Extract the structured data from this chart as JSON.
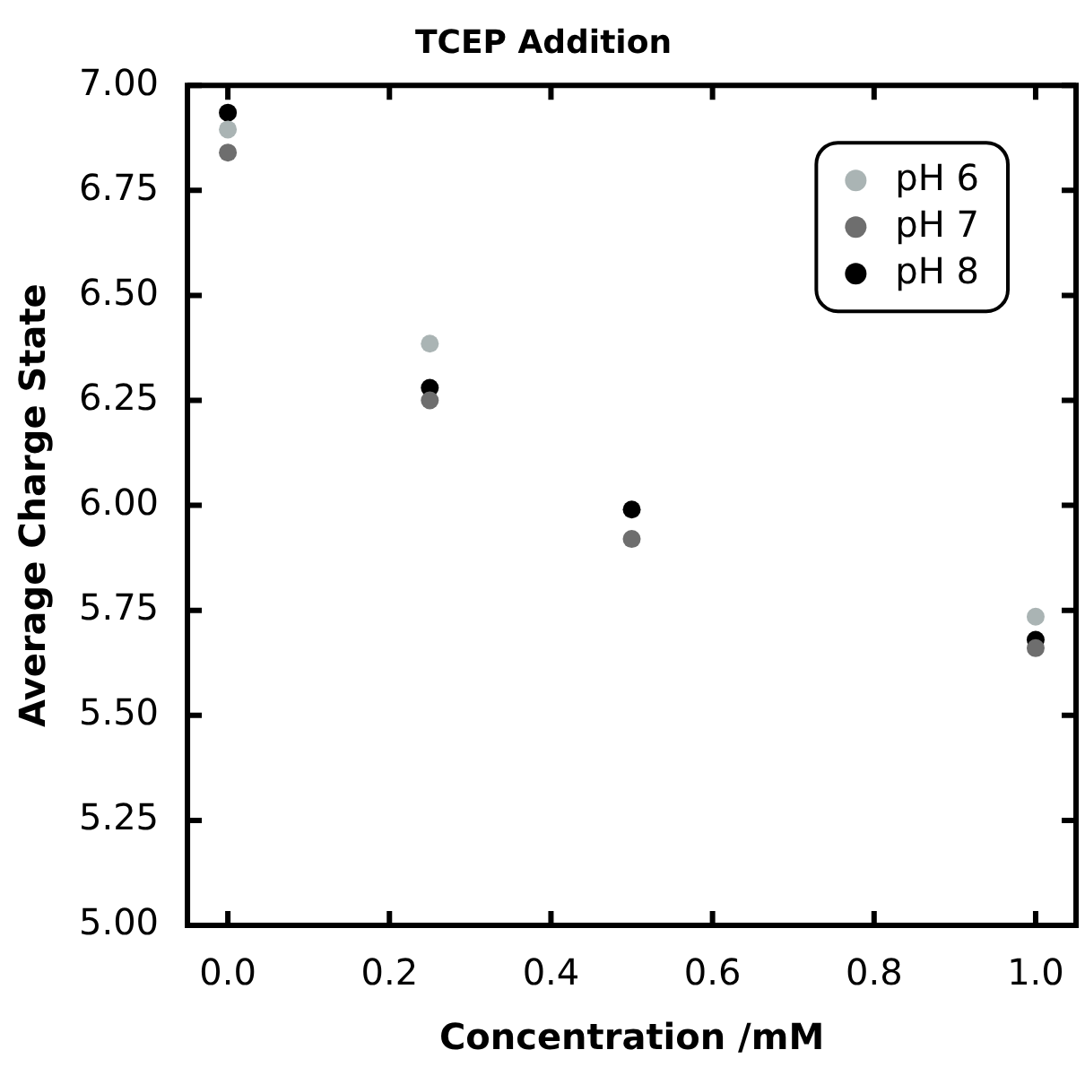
{
  "chart_data": {
    "type": "scatter",
    "title": "TCEP Addition",
    "xlabel": "Concentration /mM",
    "ylabel": "Average Charge State",
    "x": [
      0,
      0.25,
      0.5,
      1.0
    ],
    "series": [
      {
        "name": "pH 6",
        "color": "#aab4b4",
        "values": [
          6.895,
          6.385,
          null,
          5.735
        ]
      },
      {
        "name": "pH 7",
        "color": "#6e6e6e",
        "values": [
          6.84,
          6.25,
          5.92,
          5.66
        ]
      },
      {
        "name": "pH 8",
        "color": "#000000",
        "values": [
          6.935,
          6.28,
          5.99,
          5.68
        ]
      }
    ],
    "xlim": [
      -0.05,
      1.05
    ],
    "xticks": [
      {
        "value": 0,
        "label": "0.0"
      },
      0.2,
      0.4,
      0.6,
      0.8,
      {
        "value": 1,
        "label": "1.0"
      }
    ],
    "ylim": [
      5,
      7
    ],
    "yticks": [
      {
        "value": 5,
        "label": "5.00"
      },
      5.25,
      {
        "value": 5.5,
        "label": "5.50"
      },
      5.75,
      {
        "value": 6,
        "label": "6.00"
      },
      6.25,
      {
        "value": 6.5,
        "label": "6.50"
      },
      6.75,
      {
        "value": 7,
        "label": "7.00"
      }
    ],
    "legend": "top right",
    "marker": "circle",
    "grid": false
  }
}
